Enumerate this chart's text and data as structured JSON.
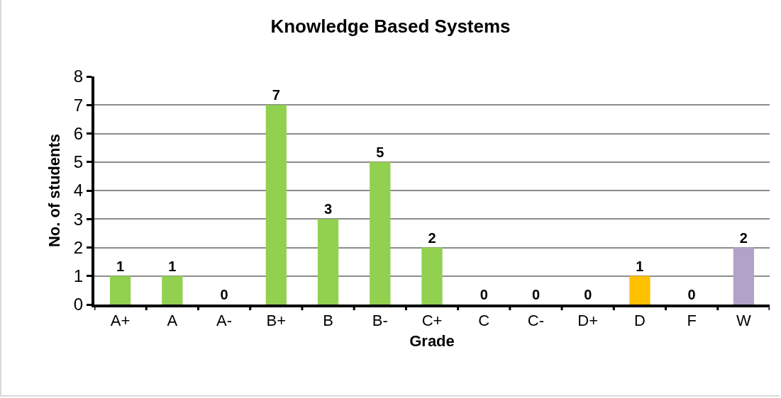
{
  "chart_data": {
    "type": "bar",
    "title": "Knowledge Based Systems",
    "xlabel": "Grade",
    "ylabel": "No. of students",
    "categories": [
      "A+",
      "A",
      "A-",
      "B+",
      "B",
      "B-",
      "C+",
      "C",
      "C-",
      "D+",
      "D",
      "F",
      "W"
    ],
    "values": [
      1,
      1,
      0,
      7,
      3,
      5,
      2,
      0,
      0,
      0,
      1,
      0,
      2
    ],
    "colors": [
      "#92d050",
      "#92d050",
      "#92d050",
      "#92d050",
      "#92d050",
      "#92d050",
      "#92d050",
      "#92d050",
      "#92d050",
      "#92d050",
      "#ffc000",
      "#92d050",
      "#b3a2c7"
    ],
    "ylim": [
      0,
      8
    ],
    "yticks": [
      0,
      1,
      2,
      3,
      4,
      5,
      6,
      7,
      8
    ],
    "grid": "y",
    "data_labels": true,
    "legend": false
  }
}
